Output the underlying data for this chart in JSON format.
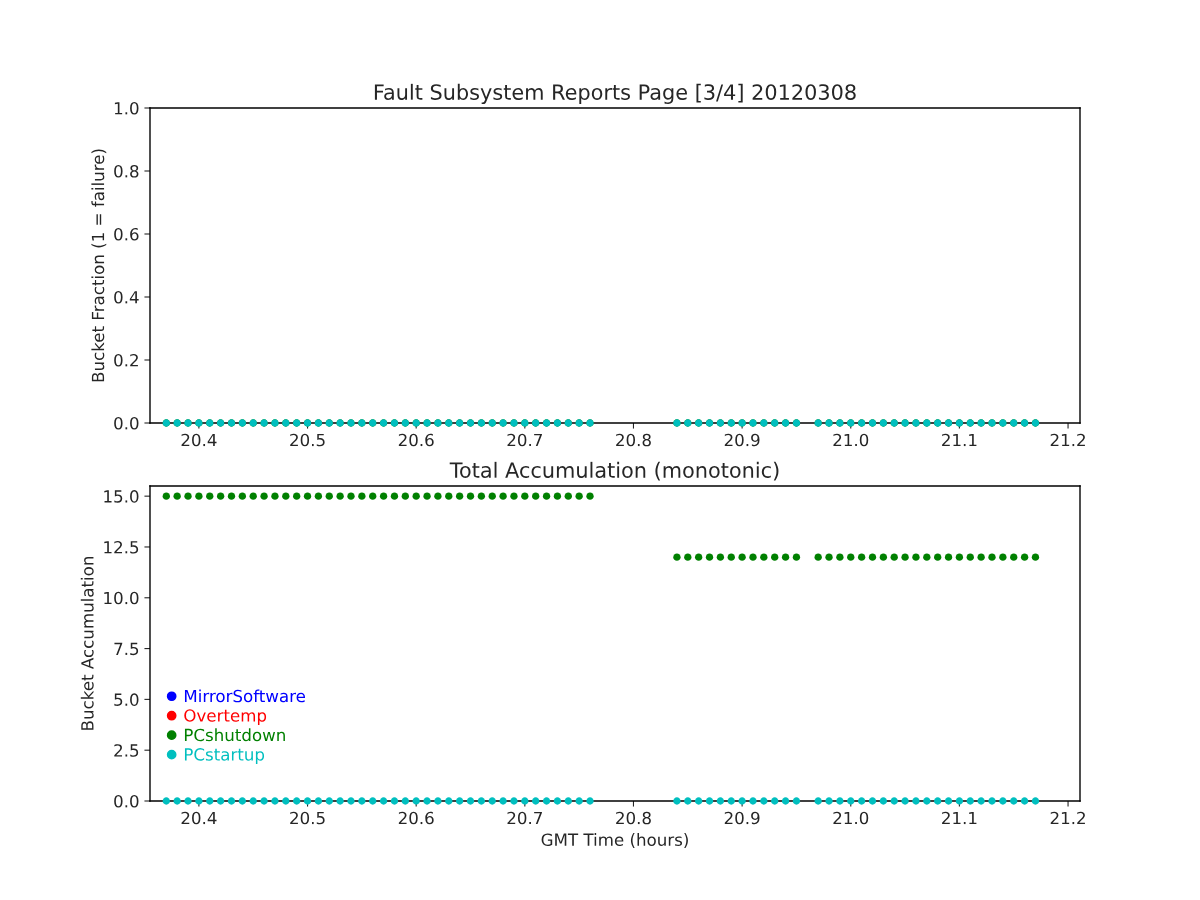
{
  "chart_data": [
    {
      "type": "scatter",
      "title": "Fault Subsystem Reports Page [3/4] 20120308",
      "ylabel": "Bucket Fraction (1 = failure)",
      "x": [
        20.37,
        20.38,
        20.39,
        20.4,
        20.41,
        20.42,
        20.43,
        20.44,
        20.45,
        20.46,
        20.47,
        20.48,
        20.49,
        20.5,
        20.51,
        20.52,
        20.53,
        20.54,
        20.55,
        20.56,
        20.57,
        20.58,
        20.59,
        20.6,
        20.61,
        20.62,
        20.63,
        20.64,
        20.65,
        20.66,
        20.67,
        20.68,
        20.69,
        20.7,
        20.71,
        20.72,
        20.73,
        20.74,
        20.75,
        20.76,
        20.84,
        20.85,
        20.86,
        20.87,
        20.88,
        20.89,
        20.9,
        20.91,
        20.92,
        20.93,
        20.94,
        20.95,
        20.97,
        20.98,
        20.99,
        21.0,
        21.01,
        21.02,
        21.03,
        21.04,
        21.05,
        21.06,
        21.07,
        21.08,
        21.09,
        21.1,
        21.11,
        21.12,
        21.13,
        21.14,
        21.15,
        21.16,
        21.17
      ],
      "series": [
        {
          "color": "#008000",
          "values": [
            0,
            0,
            0,
            0,
            0,
            0,
            0,
            0,
            0,
            0,
            0,
            0,
            0,
            0,
            0,
            0,
            0,
            0,
            0,
            0,
            0,
            0,
            0,
            0,
            0,
            0,
            0,
            0,
            0,
            0,
            0,
            0,
            0,
            0,
            0,
            0,
            0,
            0,
            0,
            0,
            0,
            0,
            0,
            0,
            0,
            0,
            0,
            0,
            0,
            0,
            0,
            0,
            0,
            0,
            0,
            0,
            0,
            0,
            0,
            0,
            0,
            0,
            0,
            0,
            0,
            0,
            0,
            0,
            0,
            0,
            0,
            0,
            0
          ]
        },
        {
          "color": "#00bfbf",
          "values": [
            0,
            0,
            0,
            0,
            0,
            0,
            0,
            0,
            0,
            0,
            0,
            0,
            0,
            0,
            0,
            0,
            0,
            0,
            0,
            0,
            0,
            0,
            0,
            0,
            0,
            0,
            0,
            0,
            0,
            0,
            0,
            0,
            0,
            0,
            0,
            0,
            0,
            0,
            0,
            0,
            0,
            0,
            0,
            0,
            0,
            0,
            0,
            0,
            0,
            0,
            0,
            0,
            0,
            0,
            0,
            0,
            0,
            0,
            0,
            0,
            0,
            0,
            0,
            0,
            0,
            0,
            0,
            0,
            0,
            0,
            0,
            0,
            0
          ]
        }
      ],
      "marker": "circle",
      "xlim": [
        20.355,
        21.211
      ],
      "xticks": [
        20.4,
        20.5,
        20.6,
        20.7,
        20.8,
        20.9,
        {
          "value": 21,
          "label": "21.0"
        },
        21.1,
        21.2
      ],
      "ylim": [
        0,
        1
      ],
      "yticks": [
        {
          "value": 0,
          "label": "0.0"
        },
        0.2,
        0.4,
        0.6,
        0.8,
        {
          "value": 1,
          "label": "1.0"
        }
      ],
      "grid": false,
      "legend": false
    },
    {
      "type": "scatter",
      "title": "Total Accumulation (monotonic)",
      "xlabel": "GMT Time (hours)",
      "ylabel": "Bucket Accumulation",
      "x": [
        20.37,
        20.38,
        20.39,
        20.4,
        20.41,
        20.42,
        20.43,
        20.44,
        20.45,
        20.46,
        20.47,
        20.48,
        20.49,
        20.5,
        20.51,
        20.52,
        20.53,
        20.54,
        20.55,
        20.56,
        20.57,
        20.58,
        20.59,
        20.6,
        20.61,
        20.62,
        20.63,
        20.64,
        20.65,
        20.66,
        20.67,
        20.68,
        20.69,
        20.7,
        20.71,
        20.72,
        20.73,
        20.74,
        20.75,
        20.76,
        20.84,
        20.85,
        20.86,
        20.87,
        20.88,
        20.89,
        20.9,
        20.91,
        20.92,
        20.93,
        20.94,
        20.95,
        20.97,
        20.98,
        20.99,
        21.0,
        21.01,
        21.02,
        21.03,
        21.04,
        21.05,
        21.06,
        21.07,
        21.08,
        21.09,
        21.1,
        21.11,
        21.12,
        21.13,
        21.14,
        21.15,
        21.16,
        21.17
      ],
      "series": [
        {
          "name": "MirrorSoftware",
          "color": "#0000ff",
          "values": [
            null,
            null,
            null,
            null,
            null,
            null,
            null,
            null,
            null,
            null,
            null,
            null,
            null,
            null,
            null,
            null,
            null,
            null,
            null,
            null,
            null,
            null,
            null,
            null,
            null,
            null,
            null,
            null,
            null,
            null,
            null,
            null,
            null,
            null,
            null,
            null,
            null,
            null,
            null,
            null,
            null,
            null,
            null,
            null,
            null,
            null,
            null,
            null,
            null,
            null,
            null,
            null,
            null,
            null,
            null,
            null,
            null,
            null,
            null,
            null,
            null,
            null,
            null,
            null,
            null,
            null,
            null,
            null,
            null,
            null,
            null,
            null,
            null
          ]
        },
        {
          "name": "Overtemp",
          "color": "#ff0000",
          "values": [
            null,
            null,
            null,
            null,
            null,
            null,
            null,
            null,
            null,
            null,
            null,
            null,
            null,
            null,
            null,
            null,
            null,
            null,
            null,
            null,
            null,
            null,
            null,
            null,
            null,
            null,
            null,
            null,
            null,
            null,
            null,
            null,
            null,
            null,
            null,
            null,
            null,
            null,
            null,
            null,
            null,
            null,
            null,
            null,
            null,
            null,
            null,
            null,
            null,
            null,
            null,
            null,
            null,
            null,
            null,
            null,
            null,
            null,
            null,
            null,
            null,
            null,
            null,
            null,
            null,
            null,
            null,
            null,
            null,
            null,
            null,
            null,
            null
          ]
        },
        {
          "name": "PCshutdown",
          "color": "#008000",
          "values": [
            15,
            15,
            15,
            15,
            15,
            15,
            15,
            15,
            15,
            15,
            15,
            15,
            15,
            15,
            15,
            15,
            15,
            15,
            15,
            15,
            15,
            15,
            15,
            15,
            15,
            15,
            15,
            15,
            15,
            15,
            15,
            15,
            15,
            15,
            15,
            15,
            15,
            15,
            15,
            15,
            12,
            12,
            12,
            12,
            12,
            12,
            12,
            12,
            12,
            12,
            12,
            12,
            12,
            12,
            12,
            12,
            12,
            12,
            12,
            12,
            12,
            12,
            12,
            12,
            12,
            12,
            12,
            12,
            12,
            12,
            12,
            12,
            12
          ]
        },
        {
          "name": "PCstartup",
          "color": "#00bfbf",
          "values": [
            0,
            0,
            0,
            0,
            0,
            0,
            0,
            0,
            0,
            0,
            0,
            0,
            0,
            0,
            0,
            0,
            0,
            0,
            0,
            0,
            0,
            0,
            0,
            0,
            0,
            0,
            0,
            0,
            0,
            0,
            0,
            0,
            0,
            0,
            0,
            0,
            0,
            0,
            0,
            0,
            0,
            0,
            0,
            0,
            0,
            0,
            0,
            0,
            0,
            0,
            0,
            0,
            0,
            0,
            0,
            0,
            0,
            0,
            0,
            0,
            0,
            0,
            0,
            0,
            0,
            0,
            0,
            0,
            0,
            0,
            0,
            0,
            0
          ]
        }
      ],
      "marker": "circle",
      "xlim": [
        20.355,
        21.211
      ],
      "xticks": [
        20.4,
        20.5,
        20.6,
        20.7,
        20.8,
        20.9,
        {
          "value": 21,
          "label": "21.0"
        },
        21.1,
        21.2
      ],
      "ylim": [
        0,
        15.5
      ],
      "yticks": [
        {
          "value": 0,
          "label": "0.0"
        },
        2.5,
        {
          "value": 5,
          "label": "5.0"
        },
        7.5,
        {
          "value": 10,
          "label": "10.0"
        },
        12.5,
        {
          "value": 15,
          "label": "15.0"
        }
      ],
      "grid": false,
      "legend": "lower left"
    }
  ]
}
